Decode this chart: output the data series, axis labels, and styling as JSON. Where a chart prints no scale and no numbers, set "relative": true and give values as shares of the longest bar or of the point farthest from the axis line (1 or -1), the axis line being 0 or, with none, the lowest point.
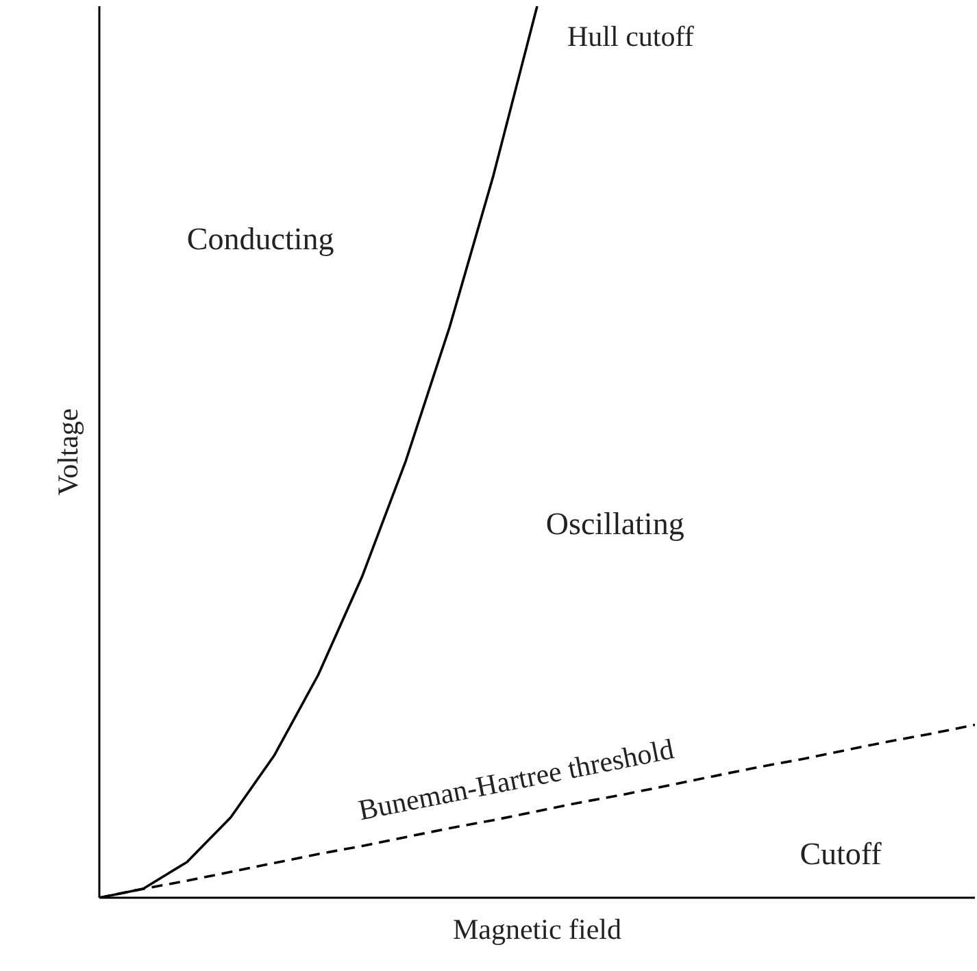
{
  "chart_data": {
    "type": "line",
    "relative": true,
    "xlabel": "Magnetic field",
    "ylabel": "Voltage",
    "tick_labels": false,
    "categories": [
      null,
      null,
      null,
      null,
      null,
      null,
      null,
      null,
      null,
      null,
      null,
      null,
      null,
      null,
      null,
      null,
      null,
      null,
      null,
      null,
      null
    ],
    "series": [
      {
        "name": "Hull cutoff",
        "color": "#000000",
        "line_style": "solid",
        "values": [
          0,
          0.01,
          0.04,
          0.09,
          0.16,
          0.25,
          0.36,
          0.49,
          0.64,
          0.81,
          1.0,
          null,
          null,
          null,
          null,
          null,
          null,
          null,
          null,
          null,
          null
        ]
      },
      {
        "name": "Buneman-Hartree threshold",
        "color": "#000000",
        "line_style": "dashed",
        "values": [
          0,
          0.01,
          0.019,
          0.029,
          0.039,
          0.049,
          0.058,
          0.068,
          0.078,
          0.087,
          0.097,
          0.107,
          0.116,
          0.126,
          0.136,
          0.146,
          0.155,
          0.165,
          0.175,
          0.184,
          0.194
        ]
      }
    ],
    "annotations": [
      "Conducting",
      "Oscillating",
      "Cutoff"
    ]
  }
}
